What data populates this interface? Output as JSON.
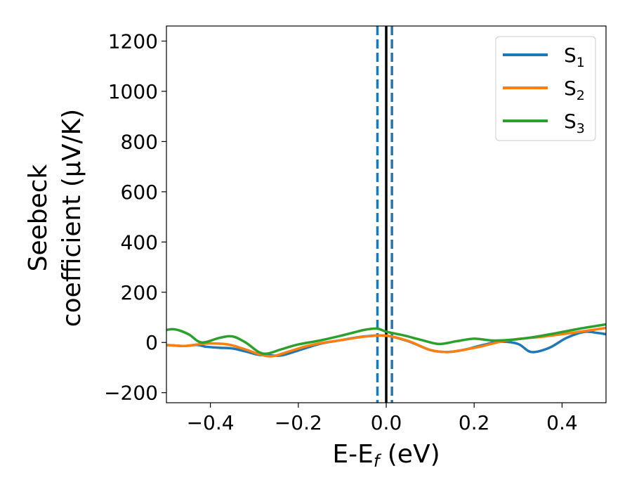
{
  "chart_data": {
    "type": "line",
    "xlabel_main": "E-E",
    "xlabel_sub": "f",
    "xlabel_unit": " (eV)",
    "ylabel_line1": "Seebeck",
    "ylabel_line2": "coefficient  (μV/K)",
    "xlim": [
      -0.5,
      0.5
    ],
    "ylim": [
      -240,
      1260
    ],
    "xticks": [
      -0.4,
      -0.2,
      0.0,
      0.2,
      0.4
    ],
    "xtick_labels": [
      "−0.4",
      "−0.2",
      "0.0",
      "0.2",
      "0.4"
    ],
    "yticks": [
      -200,
      0,
      200,
      400,
      600,
      800,
      1000,
      1200
    ],
    "ytick_labels": [
      "−200",
      "0",
      "200",
      "400",
      "600",
      "800",
      "1000",
      "1200"
    ],
    "legend_position": "top-right",
    "grid": false,
    "vertical_lines": [
      {
        "x": -0.02,
        "style": "dashed",
        "color": "#1f77b4"
      },
      {
        "x": 0.0,
        "style": "solid",
        "color": "#000000"
      },
      {
        "x": 0.013,
        "style": "dashed",
        "color": "#1f77b4"
      }
    ],
    "series": [
      {
        "name": "S",
        "subscript": "1",
        "color": "#1f77b4",
        "x": [
          -0.5,
          -0.46,
          -0.43,
          -0.41,
          -0.38,
          -0.35,
          -0.32,
          -0.29,
          -0.27,
          -0.24,
          -0.2,
          -0.15,
          -0.1,
          -0.05,
          0.0,
          0.05,
          0.1,
          0.14,
          0.18,
          0.22,
          0.26,
          0.3,
          0.33,
          0.37,
          0.41,
          0.45,
          0.48,
          0.5
        ],
        "y": [
          -10,
          -14,
          -10,
          -17,
          -21,
          -24,
          -36,
          -49,
          -50,
          -52,
          -32,
          -5,
          10,
          24,
          27,
          5,
          -30,
          -38,
          -28,
          -10,
          3,
          -6,
          -38,
          -22,
          18,
          42,
          38,
          33
        ]
      },
      {
        "name": "S",
        "subscript": "2",
        "color": "#ff7f0e",
        "x": [
          -0.5,
          -0.46,
          -0.43,
          -0.4,
          -0.36,
          -0.32,
          -0.29,
          -0.26,
          -0.22,
          -0.18,
          -0.14,
          -0.1,
          -0.05,
          0.0,
          0.05,
          0.1,
          0.14,
          0.18,
          0.22,
          0.26,
          0.3,
          0.35,
          0.4,
          0.45,
          0.5
        ],
        "y": [
          -10,
          -14,
          -8,
          -4,
          -8,
          -28,
          -46,
          -55,
          -35,
          -14,
          0,
          10,
          23,
          27,
          6,
          -30,
          -38,
          -28,
          -14,
          3,
          14,
          22,
          33,
          45,
          58
        ]
      },
      {
        "name": "S",
        "subscript": "3",
        "color": "#2ca02c",
        "x": [
          -0.5,
          -0.48,
          -0.45,
          -0.42,
          -0.38,
          -0.35,
          -0.32,
          -0.29,
          -0.27,
          -0.24,
          -0.2,
          -0.15,
          -0.1,
          -0.05,
          -0.02,
          0.0,
          0.04,
          0.08,
          0.12,
          0.16,
          0.2,
          0.24,
          0.28,
          0.33,
          0.38,
          0.44,
          0.5
        ],
        "y": [
          50,
          52,
          33,
          0,
          18,
          24,
          0,
          -38,
          -44,
          -28,
          -8,
          8,
          28,
          50,
          55,
          43,
          28,
          10,
          -6,
          5,
          15,
          8,
          10,
          20,
          35,
          55,
          72
        ]
      }
    ]
  }
}
